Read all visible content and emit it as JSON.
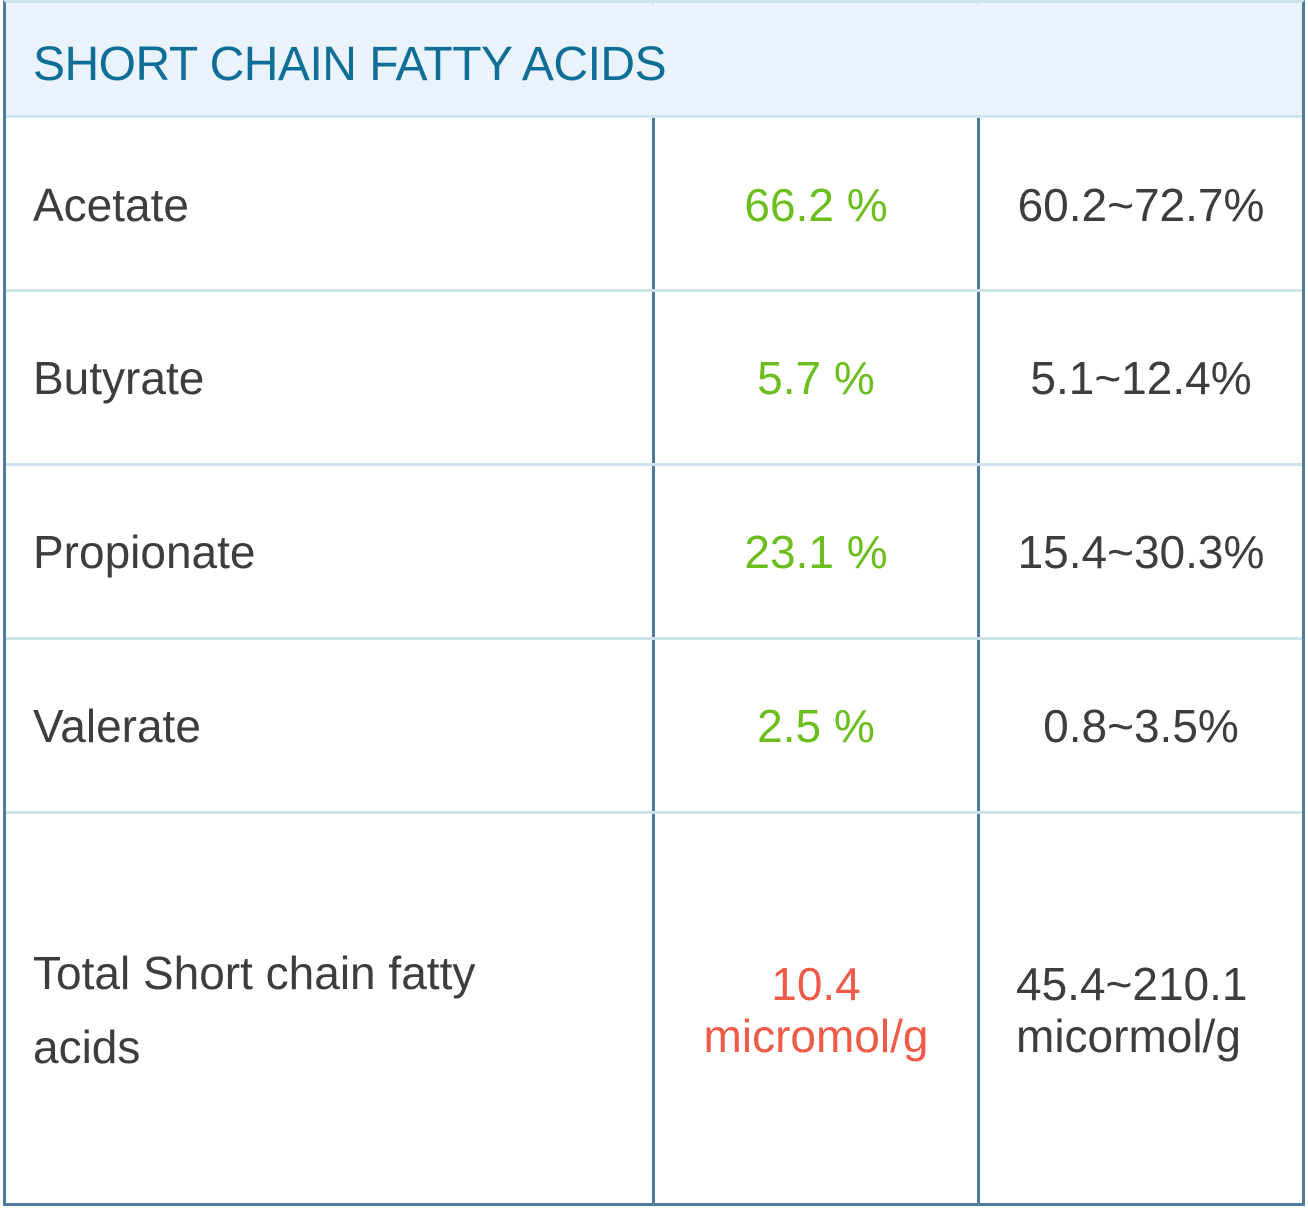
{
  "header": {
    "title": "SHORT CHAIN FATTY ACIDS"
  },
  "rows": [
    {
      "name": "Acetate",
      "result": "66.2 %",
      "range": "60.2~72.7%",
      "status": "normal"
    },
    {
      "name": "Butyrate",
      "result": "5.7 %",
      "range": "5.1~12.4%",
      "status": "normal"
    },
    {
      "name": "Propionate",
      "result": "23.1 %",
      "range": "15.4~30.3%",
      "status": "normal"
    },
    {
      "name": "Valerate",
      "result": "2.5 %",
      "range": "0.8~3.5%",
      "status": "normal"
    },
    {
      "name": "Total Short chain fatty acids",
      "result": "10.4 micromol/g",
      "range": "45.4~210.1 micormol/g",
      "status": "abnormal"
    }
  ],
  "colors": {
    "header_text": "#0e6e96",
    "header_bg": "#eaf3fb",
    "normal": "#6cbe1e",
    "abnormal": "#f05a48",
    "border": "#4f7c9c",
    "row_divider": "#cfe3ec"
  }
}
